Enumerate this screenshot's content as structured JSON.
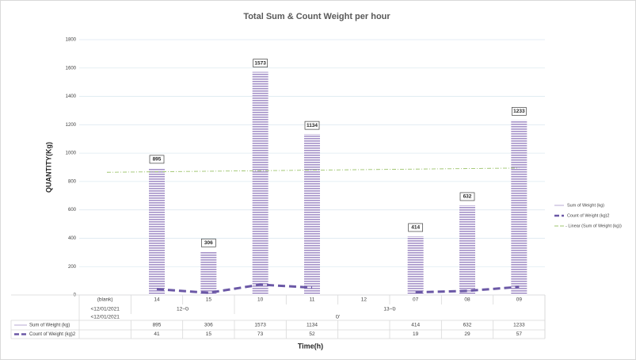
{
  "chart_data": {
    "type": "bar",
    "title": "Total  Sum & Count Weight per hour",
    "y_label": "QUANTITY(Kg)",
    "x_label": "Time(h)",
    "categories": [
      "(blank)",
      "14",
      "15",
      "10",
      "11",
      "12",
      "07",
      "08",
      "09"
    ],
    "category_groups": [
      [
        {
          "label": "<12/01/2021",
          "start": 0,
          "end": 0
        },
        {
          "label": "ס~12",
          "start": 1,
          "end": 2
        },
        {
          "label": "ס~13",
          "start": 3,
          "end": 8
        }
      ],
      [
        {
          "label": "<12/01/2021",
          "start": 0,
          "end": 0
        },
        {
          "label": "ס'",
          "start": 1,
          "end": 8
        }
      ]
    ],
    "series": [
      {
        "name": "Sum of Weight (kg)",
        "type": "bar",
        "color": "#a592c8",
        "values": [
          null,
          895,
          306,
          1573,
          1134,
          null,
          414,
          632,
          1233
        ]
      },
      {
        "name": "Count of Weight (kg)2",
        "type": "line",
        "color": "#6b58a6",
        "values": [
          null,
          41,
          15,
          73,
          52,
          null,
          19,
          29,
          57
        ]
      }
    ],
    "trendline": {
      "name": "- Linear (Sum of Weight (kg))",
      "color": "#9dc46c",
      "values": [
        865,
        895
      ]
    },
    "ylim": [
      0,
      1800
    ],
    "yticks": [
      0,
      200,
      400,
      600,
      800,
      1000,
      1200,
      1400,
      1600,
      1800
    ],
    "grid": true,
    "legend": "right"
  }
}
